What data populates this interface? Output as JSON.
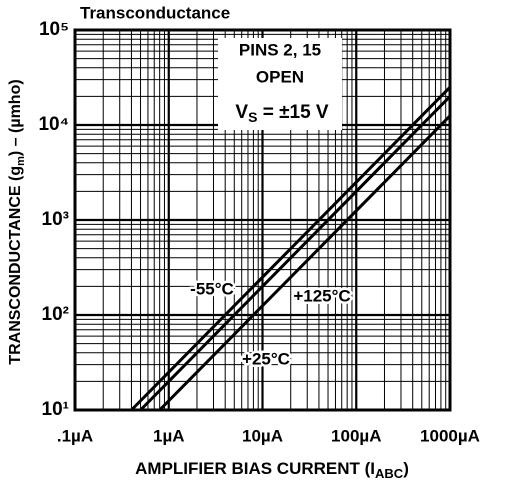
{
  "chart_data": {
    "type": "line",
    "title": "Transconductance",
    "xlabel": {
      "text": "AMPLIFIER BIAS CURRENT (I",
      "sub": "ABC",
      "end": ")"
    },
    "ylabel": {
      "text": "TRANSCONDUCTANCE (g",
      "sub": "m",
      "end": ") – (µmho)"
    },
    "annotation": {
      "line1": "PINS 2, 15",
      "line2": "OPEN",
      "line3": {
        "text": "V",
        "sub": "S",
        "end": " = ±15 V"
      }
    },
    "log_x": true,
    "log_y": true,
    "grid": true,
    "xlim": [
      0.1,
      1000
    ],
    "ylim": [
      10,
      100000
    ],
    "xticks": [
      {
        "value": 0.1,
        "label": ".1µA"
      },
      {
        "value": 1,
        "label": "1µA"
      },
      {
        "value": 10,
        "label": "10µA"
      },
      {
        "value": 100,
        "label": "100µA"
      },
      {
        "value": 1000,
        "label": "1000µA"
      }
    ],
    "yticks": [
      {
        "value": 10,
        "label": "10¹"
      },
      {
        "value": 100,
        "label": "10²"
      },
      {
        "value": 1000,
        "label": "10³"
      },
      {
        "value": 10000,
        "label": "10⁴"
      },
      {
        "value": 100000,
        "label": "10⁵"
      }
    ],
    "series": [
      {
        "name": "-55°C",
        "color": "#000000",
        "x": [
          0.4,
          1000
        ],
        "y": [
          10,
          25000
        ]
      },
      {
        "name": "+25°C",
        "color": "#000000",
        "x": [
          0.5,
          1000
        ],
        "y": [
          10,
          20000
        ]
      },
      {
        "name": "+125°C",
        "color": "#000000",
        "x": [
          0.8,
          1000
        ],
        "y": [
          10,
          12500
        ]
      }
    ]
  }
}
